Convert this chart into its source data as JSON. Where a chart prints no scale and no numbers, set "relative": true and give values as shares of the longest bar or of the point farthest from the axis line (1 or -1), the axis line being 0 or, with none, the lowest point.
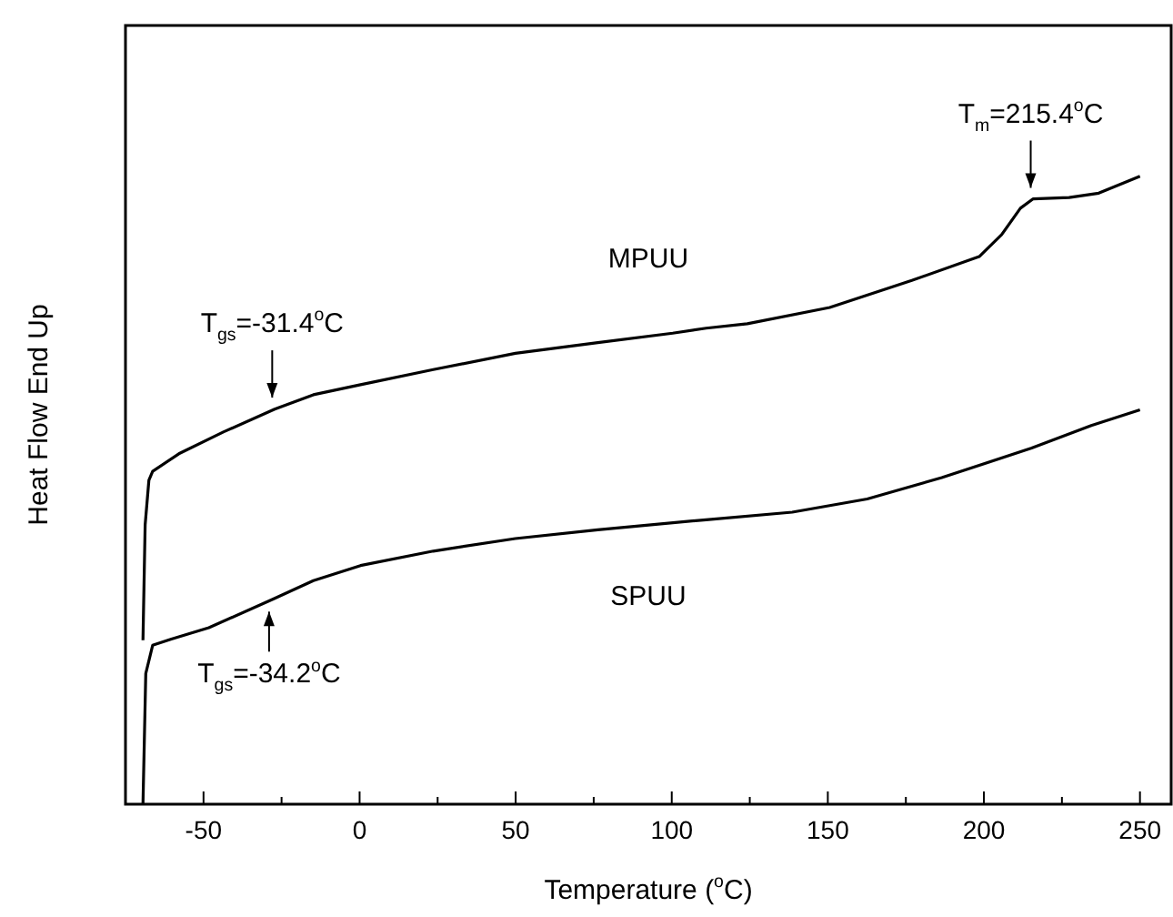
{
  "chart_data": {
    "type": "line",
    "relative": true,
    "xlabel": "Temperature ($^{o}$C)",
    "ylabel": "Heat Flow End Up",
    "xlim": [
      -75,
      260
    ],
    "xticks": [
      -50,
      {
        "value": -25,
        "label": null
      },
      0,
      {
        "value": 25,
        "label": null
      },
      50,
      {
        "value": 75,
        "label": null
      },
      100,
      {
        "value": 125,
        "label": null
      },
      150,
      {
        "value": 175,
        "label": null
      },
      200,
      {
        "value": 225,
        "label": null
      },
      250
    ],
    "grid": false,
    "legend": false,
    "marker": "none",
    "line_style": "solid",
    "color": "#000000",
    "series": [
      {
        "name": "MPUU",
        "x": [
          -69.4,
          -68.7,
          -67.5,
          -66.3,
          -57.9,
          -43.5,
          -27.2,
          -14.8,
          0.3,
          23.6,
          49.9,
          76.3,
          100.3,
          111,
          124.2,
          150.6,
          176.9,
          198.5,
          205.7,
          211.7,
          215.8,
          227.3,
          236.8,
          250
        ],
        "values": [
          0.261,
          0.445,
          0.516,
          0.53,
          0.558,
          0.593,
          0.629,
          0.652,
          0.668,
          0.692,
          0.718,
          0.735,
          0.75,
          0.758,
          0.765,
          0.791,
          0.834,
          0.872,
          0.907,
          0.949,
          0.964,
          0.966,
          0.973,
          1.0
        ]
      },
      {
        "name": "SPUU",
        "x": [
          -69.4,
          -68.5,
          -66.3,
          -60.3,
          -48.3,
          -28,
          -14.8,
          0.3,
          23.6,
          49.9,
          76.3,
          111,
          138.6,
          162.6,
          186.5,
          215.3,
          234.4,
          250
        ],
        "values": [
          0,
          0.208,
          0.253,
          0.263,
          0.281,
          0.326,
          0.356,
          0.38,
          0.403,
          0.423,
          0.437,
          0.453,
          0.465,
          0.486,
          0.52,
          0.567,
          0.603,
          0.628
        ]
      }
    ],
    "annotations": [
      {
        "text": "T$_{gs}$=-31.4$^{o}$C",
        "x": -28,
        "y": 0.63
      },
      {
        "text": "T$_{gs}$=-34.2$^{o}$C",
        "x": -29,
        "y": 0.324
      },
      {
        "text": "T$_{m}$=215.4$^{o}$C",
        "x": 215,
        "y": 0.964
      }
    ]
  }
}
